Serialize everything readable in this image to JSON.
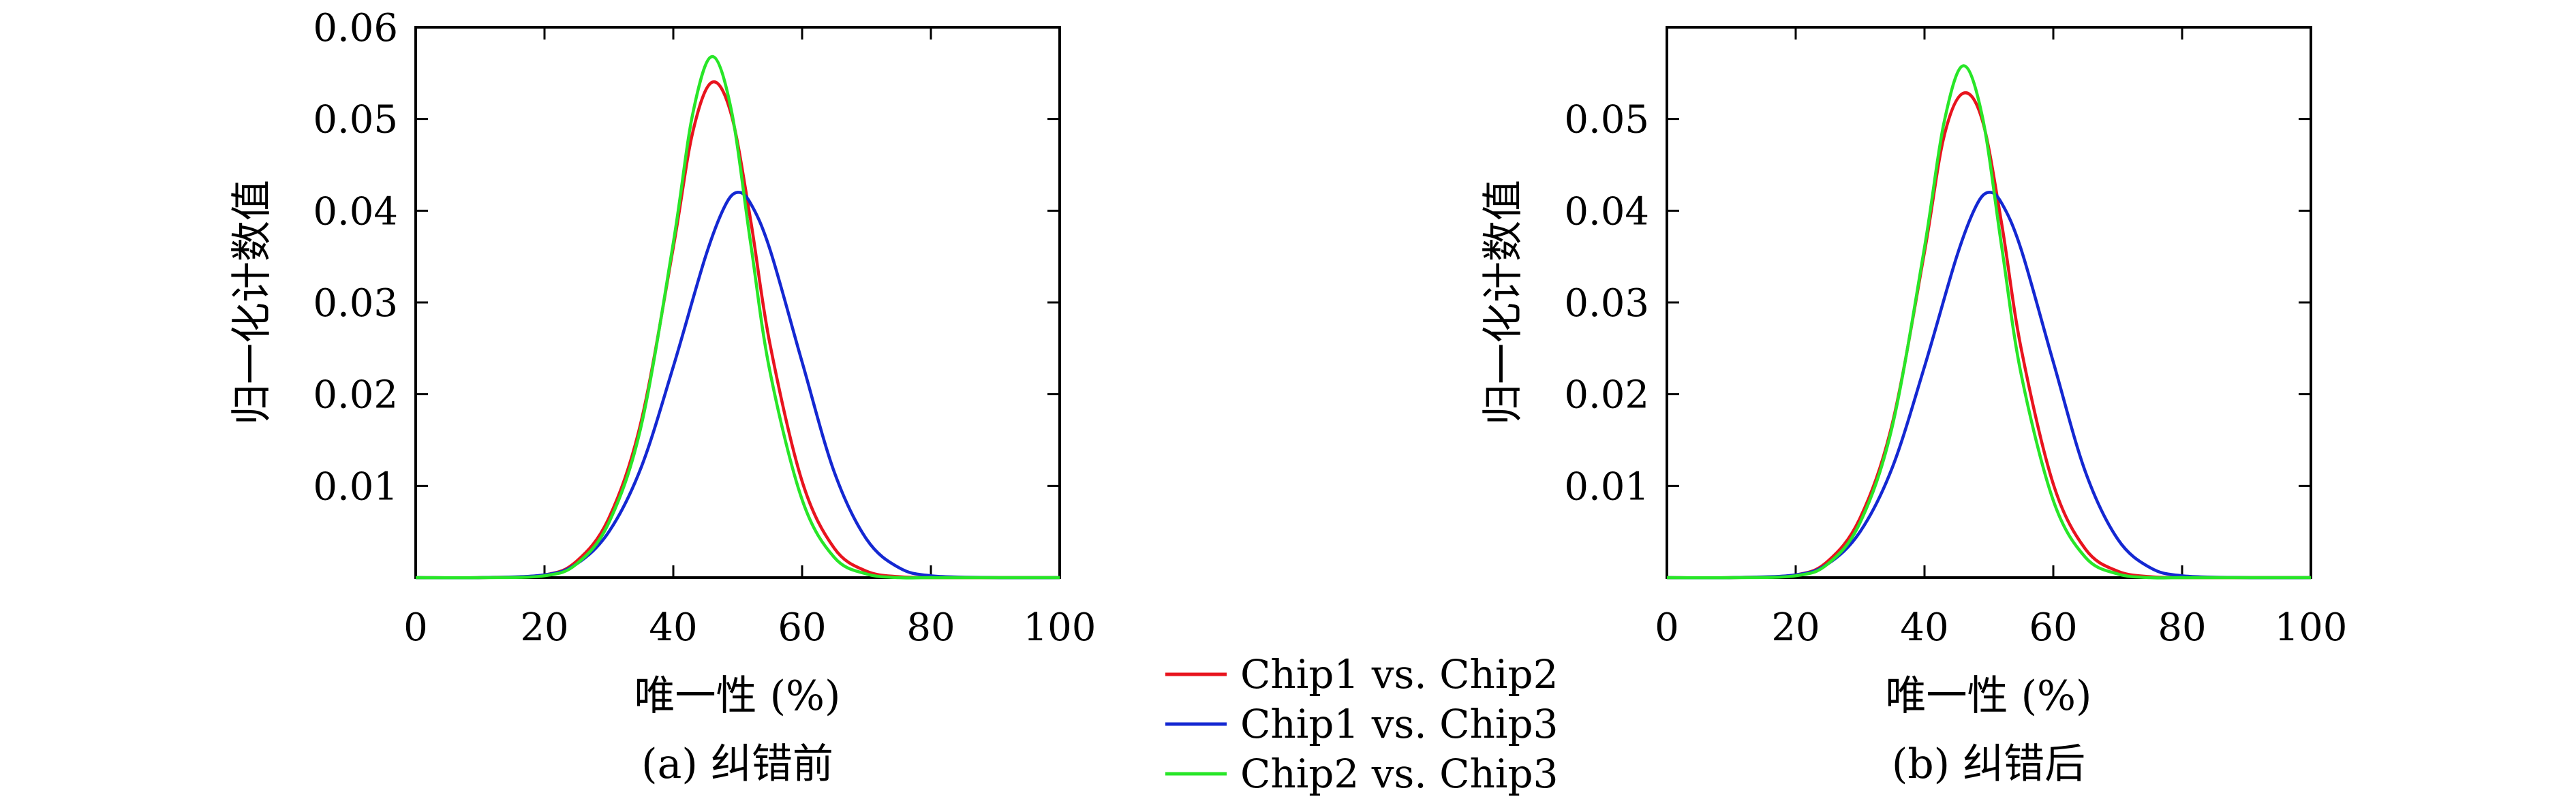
{
  "chart_data": [
    {
      "type": "line",
      "caption": "(a) 纠错前",
      "xlabel": "唯一性 (%)",
      "ylabel": "归一化计数值",
      "xlim": [
        0,
        100
      ],
      "ylim": [
        0,
        0.06
      ],
      "xticks": [
        "0",
        "20",
        "40",
        "60",
        "80",
        "100"
      ],
      "yticks": [
        "0.01",
        "0.02",
        "0.03",
        "0.04",
        "0.05",
        "0.06"
      ],
      "grid": false,
      "series": [
        {
          "name": "Chip1 vs. Chip2",
          "color": "#e8141e",
          "x": [
            0,
            10,
            20,
            25,
            30,
            35,
            40,
            43,
            46,
            49,
            52,
            55,
            60,
            65,
            70,
            75,
            80,
            90,
            100
          ],
          "y": [
            0,
            0,
            0.0003,
            0.0018,
            0.0065,
            0.017,
            0.036,
            0.0485,
            0.054,
            0.0505,
            0.039,
            0.0255,
            0.0105,
            0.0032,
            0.0007,
            0.0001,
            0,
            0,
            0
          ]
        },
        {
          "name": "Chip1 vs. Chip3",
          "color": "#1428d2",
          "x": [
            0,
            10,
            20,
            25,
            30,
            35,
            40,
            45,
            48,
            50,
            52,
            55,
            60,
            65,
            70,
            75,
            80,
            90,
            100
          ],
          "y": [
            0,
            0,
            0.0003,
            0.0015,
            0.005,
            0.012,
            0.023,
            0.035,
            0.0405,
            0.042,
            0.0408,
            0.0358,
            0.0235,
            0.0115,
            0.0042,
            0.0011,
            0.0002,
            0,
            0
          ]
        },
        {
          "name": "Chip2 vs. Chip3",
          "color": "#28e628",
          "x": [
            0,
            10,
            20,
            25,
            30,
            35,
            40,
            43,
            46,
            49,
            52,
            55,
            60,
            65,
            70,
            75,
            80,
            90,
            100
          ],
          "y": [
            0,
            0,
            0.0002,
            0.0015,
            0.006,
            0.0165,
            0.0365,
            0.0505,
            0.0568,
            0.051,
            0.0365,
            0.0225,
            0.0085,
            0.0022,
            0.0004,
            0,
            0,
            0,
            0
          ]
        }
      ]
    },
    {
      "type": "line",
      "caption": "(b) 纠错后",
      "xlabel": "唯一性 (%)",
      "ylabel": "归一化计数值",
      "xlim": [
        0,
        100
      ],
      "ylim": [
        0,
        0.06
      ],
      "xticks": [
        "0",
        "20",
        "40",
        "60",
        "80",
        "100"
      ],
      "yticks": [
        "0.01",
        "0.02",
        "0.03",
        "0.04",
        "0.05"
      ],
      "grid": false,
      "series": [
        {
          "name": "Chip1 vs. Chip2",
          "color": "#e8141e",
          "x": [
            0,
            10,
            20,
            25,
            30,
            35,
            40,
            43,
            46,
            49,
            52,
            55,
            60,
            65,
            70,
            75,
            80,
            90,
            100
          ],
          "y": [
            0,
            0,
            0.0003,
            0.0018,
            0.0065,
            0.0168,
            0.0355,
            0.048,
            0.0528,
            0.0498,
            0.0385,
            0.025,
            0.0102,
            0.0031,
            0.0007,
            0.0001,
            0,
            0,
            0
          ]
        },
        {
          "name": "Chip1 vs. Chip3",
          "color": "#1428d2",
          "x": [
            0,
            10,
            20,
            25,
            30,
            35,
            40,
            45,
            48,
            50,
            52,
            55,
            60,
            65,
            70,
            75,
            80,
            90,
            100
          ],
          "y": [
            0,
            0,
            0.0003,
            0.0015,
            0.005,
            0.012,
            0.023,
            0.035,
            0.0405,
            0.042,
            0.0408,
            0.0358,
            0.0235,
            0.0115,
            0.0042,
            0.0011,
            0.0002,
            0,
            0
          ]
        },
        {
          "name": "Chip2 vs. Chip3",
          "color": "#28e628",
          "x": [
            0,
            10,
            20,
            25,
            30,
            35,
            40,
            43,
            46,
            49,
            52,
            55,
            60,
            65,
            70,
            75,
            80,
            90,
            100
          ],
          "y": [
            0,
            0,
            0.0002,
            0.0015,
            0.006,
            0.0165,
            0.036,
            0.0495,
            0.0558,
            0.0502,
            0.036,
            0.0222,
            0.0084,
            0.0022,
            0.0004,
            0,
            0,
            0,
            0
          ]
        }
      ]
    }
  ],
  "legend": {
    "position": "bottom-center",
    "entries": [
      {
        "label": "Chip1 vs. Chip2",
        "color": "#e8141e"
      },
      {
        "label": "Chip1 vs. Chip3",
        "color": "#1428d2"
      },
      {
        "label": "Chip2 vs. Chip3",
        "color": "#28e628"
      }
    ]
  }
}
